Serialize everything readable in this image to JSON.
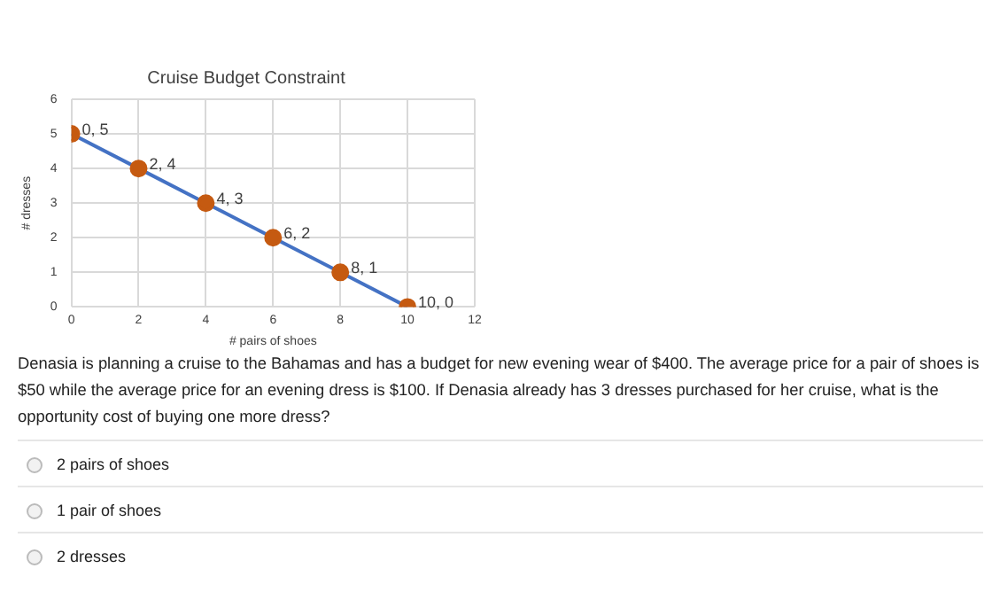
{
  "chart_data": {
    "type": "line",
    "title": "Cruise Budget Constraint",
    "xlabel": "# pairs of shoes",
    "ylabel": "# dresses",
    "x": [
      0,
      2,
      4,
      6,
      8,
      10
    ],
    "series": [
      {
        "color": "#4472c4",
        "colors": [
          "#c55a11",
          "#c55a11",
          "#c55a11",
          "#c55a11",
          "#c55a11",
          "#c55a11"
        ],
        "values": [
          5,
          4,
          3,
          2,
          1,
          0
        ],
        "value_labels": [
          "0, 5",
          "2, 4",
          "4, 3",
          "6, 2",
          "8, 1",
          "10, 0"
        ]
      }
    ],
    "xlim": [
      0,
      12
    ],
    "xticks": [
      0,
      2,
      4,
      6,
      8,
      10,
      12
    ],
    "ylim": [
      0,
      6
    ],
    "yticks": [
      0,
      1,
      2,
      3,
      4,
      5,
      6
    ],
    "grid": true,
    "marker": "circle",
    "annotations": [
      "Denasia is planning a cruise to the Bahamas and has a budget for new evening wear of $400. The average price for a pair of shoes is $50 while the average price for an evening dress is $100. If Denasia already has 3 dresses purchased for her cruise, what is the opportunity cost of buying one more dress?",
      "2 pairs of shoes",
      "1 pair of shoes",
      "2 dresses"
    ]
  }
}
